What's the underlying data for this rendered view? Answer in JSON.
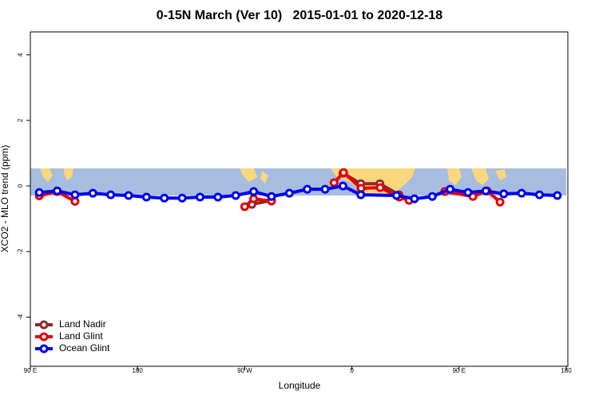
{
  "chart_data": {
    "type": "line",
    "title": "0-15N March (Ver 10)   2015-01-01 to 2020-12-18",
    "x_label": "Longitude",
    "y_label": "XCO2 - MLO trend (ppm)",
    "xlim": [
      90,
      540
    ],
    "xticks": [
      {
        "value": 90,
        "label": "90 E"
      },
      180,
      {
        "value": 270,
        "label": "90 W"
      },
      {
        "value": 360,
        "label": "0"
      },
      {
        "value": 450,
        "label": "90 E"
      },
      {
        "value": 540,
        "label": "180"
      }
    ],
    "ylim": [
      -5.5,
      4.7
    ],
    "yticks": [
      -4,
      -2,
      0,
      2,
      4
    ],
    "legend": "bottom-left",
    "series": [
      {
        "name": "Land Nadir",
        "color": "#8b2a2a",
        "x": [
          276,
          292.5,
          300,
          352.5,
          367.5,
          383.5,
          399.5
        ],
        "values": [
          -0.56,
          -0.44,
          null,
          0.39,
          0.07,
          0.07,
          -0.27
        ]
      },
      {
        "name": "Land Glint",
        "color": "#e60000",
        "x": [
          97.5,
          112.5,
          127.5,
          142.5,
          270,
          277.5,
          292.5,
          307.5,
          345,
          353,
          367.7,
          383.8,
          399.9,
          408,
          420,
          438,
          461.6,
          473.6,
          484.4
        ],
        "values": [
          -0.3,
          -0.17,
          -0.47,
          null,
          -0.63,
          -0.39,
          -0.46,
          null,
          0.1,
          0.41,
          -0.07,
          -0.05,
          -0.34,
          -0.44,
          null,
          -0.17,
          -0.32,
          -0.15,
          -0.49
        ]
      },
      {
        "name": "Ocean Glint",
        "color": "#0000ee",
        "x": [
          97.5,
          112.5,
          127.5,
          142.5,
          157.5,
          172.5,
          187.5,
          202.5,
          217.5,
          232.5,
          247.5,
          262.5,
          277.5,
          292.5,
          307.5,
          322.5,
          337.5,
          352.5,
          367.5,
          397.5,
          412.5,
          427.5,
          442.5,
          457.5,
          472.5,
          487.5,
          502.5,
          517.5,
          532.5
        ],
        "values": [
          -0.2,
          -0.15,
          -0.27,
          -0.22,
          -0.27,
          -0.29,
          -0.34,
          -0.37,
          -0.37,
          -0.34,
          -0.34,
          -0.29,
          -0.17,
          -0.32,
          -0.22,
          -0.1,
          -0.1,
          0,
          -0.27,
          -0.29,
          -0.39,
          -0.32,
          -0.1,
          -0.2,
          -0.15,
          -0.24,
          -0.22,
          -0.27,
          -0.29
        ]
      }
    ]
  }
}
